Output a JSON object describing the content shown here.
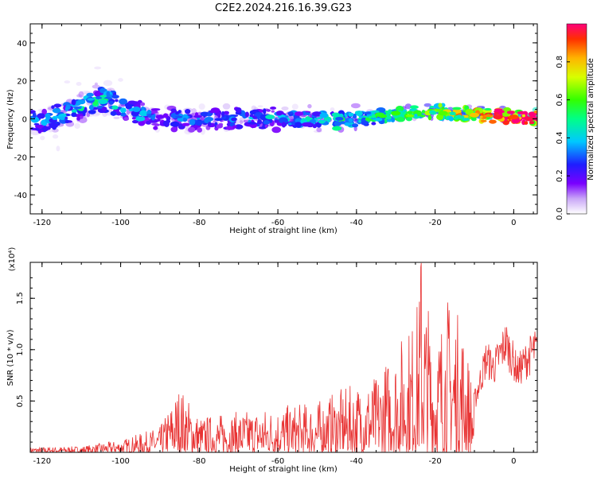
{
  "title": "C2E2.2024.216.16.39.G23",
  "chart_data": [
    {
      "type": "heatmap",
      "xlabel": "Height of straight line (km)",
      "ylabel": "Frequency (Hz)",
      "xlim": [
        -123,
        6
      ],
      "ylim": [
        -50,
        50
      ],
      "xticks": [
        -120,
        -100,
        -80,
        -60,
        -40,
        -20,
        0
      ],
      "yticks": [
        -40,
        -20,
        0,
        20,
        40
      ],
      "colorbar": {
        "label": "Normalized spectral amplitude",
        "range": [
          0.0,
          1.0
        ],
        "ticks": [
          0.0,
          0.2,
          0.4,
          0.6,
          0.8
        ]
      },
      "ridge": {
        "description_points": [
          {
            "x": -120,
            "freq": -2,
            "amp": 0.35
          },
          {
            "x": -105,
            "freq": 10,
            "amp": 0.45
          },
          {
            "x": -90,
            "freq": 0,
            "amp": 0.3
          },
          {
            "x": -60,
            "freq": 0,
            "amp": 0.35
          },
          {
            "x": -40,
            "freq": 0,
            "amp": 0.45
          },
          {
            "x": -20,
            "freq": 4,
            "amp": 0.6
          },
          {
            "x": 0,
            "freq": 1,
            "amp": 0.95
          }
        ]
      }
    },
    {
      "type": "line",
      "xlabel": "Height of straight line (km)",
      "ylabel": "SNR (10 * v/v)",
      "yscale_label": "(x10⁴)",
      "xlim": [
        -123,
        6
      ],
      "ylim": [
        0,
        1.85
      ],
      "xticks": [
        -120,
        -100,
        -80,
        -60,
        -40,
        -20,
        0
      ],
      "yticks": [
        0.5,
        1.0,
        1.5
      ],
      "series": [
        {
          "color": "#e83232",
          "envelope": [
            {
              "x": -123,
              "peak": 0.05
            },
            {
              "x": -110,
              "peak": 0.06
            },
            {
              "x": -100,
              "peak": 0.12
            },
            {
              "x": -90,
              "peak": 0.25
            },
            {
              "x": -85,
              "peak": 0.66
            },
            {
              "x": -80,
              "peak": 0.35
            },
            {
              "x": -70,
              "peak": 0.4
            },
            {
              "x": -60,
              "peak": 0.45
            },
            {
              "x": -50,
              "peak": 0.5
            },
            {
              "x": -45,
              "peak": 0.6
            },
            {
              "x": -35,
              "peak": 0.75
            },
            {
              "x": -30,
              "peak": 1.05
            },
            {
              "x": -25,
              "peak": 1.35
            },
            {
              "x": -23.5,
              "peak": 1.85
            },
            {
              "x": -20,
              "peak": 1.1
            },
            {
              "x": -17,
              "peak": 1.55
            },
            {
              "x": -13,
              "peak": 1.3
            },
            {
              "x": -10,
              "peak": 0.6
            },
            {
              "x": -7,
              "peak": 1.1
            },
            {
              "x": -5,
              "peak": 1.0
            },
            {
              "x": -2,
              "peak": 1.3
            },
            {
              "x": 1,
              "peak": 0.95
            },
            {
              "x": 5,
              "peak": 1.2
            }
          ]
        }
      ]
    }
  ]
}
